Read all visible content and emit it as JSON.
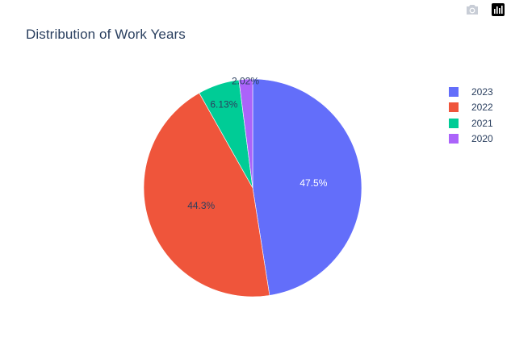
{
  "title": "Distribution of Work Years",
  "chart_data": {
    "type": "pie",
    "title": "Distribution of Work Years",
    "labels": [
      "2023",
      "2022",
      "2021",
      "2020"
    ],
    "values": [
      47.5,
      44.3,
      6.13,
      2.02
    ],
    "value_labels": [
      "47.5%",
      "44.3%",
      "6.13%",
      "2.02%"
    ],
    "colors": [
      "#636efa",
      "#ef553b",
      "#00cc96",
      "#ab63fa"
    ],
    "legend_position": "right",
    "sort": "descending",
    "direction": "clockwise"
  },
  "modebar": {
    "buttons": [
      "camera-icon",
      "plotly-logo-icon"
    ]
  }
}
